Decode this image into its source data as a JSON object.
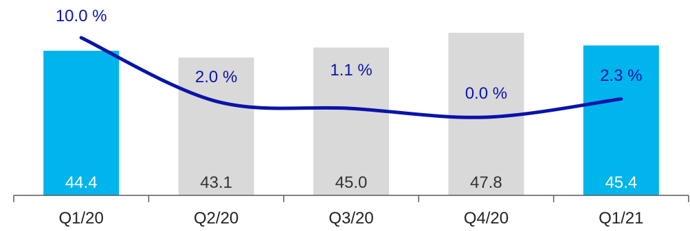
{
  "chart_data": {
    "type": "bar",
    "categories": [
      "Q1/20",
      "Q2/20",
      "Q3/20",
      "Q4/20",
      "Q1/21"
    ],
    "series": [
      {
        "type": "bar",
        "values": [
          44.4,
          43.1,
          45.0,
          47.8,
          45.4
        ],
        "labels": [
          "44.4",
          "43.1",
          "45.0",
          "47.8",
          "45.4"
        ],
        "colors": [
          "#00B4EC",
          "#D9D9D9",
          "#D9D9D9",
          "#D9D9D9",
          "#00B4EC"
        ],
        "label_colors": [
          "#ffffff",
          "#333333",
          "#333333",
          "#333333",
          "#ffffff"
        ]
      },
      {
        "type": "line",
        "values": [
          10.0,
          2.0,
          1.1,
          0.0,
          2.3
        ],
        "labels": [
          "10.0 %",
          "2.0 %",
          "1.1 %",
          "0.0 %",
          "2.3 %"
        ],
        "color": "#0A14A8"
      }
    ],
    "title": "",
    "xlabel": "",
    "ylabel": "",
    "grid": false,
    "legend": "none"
  }
}
